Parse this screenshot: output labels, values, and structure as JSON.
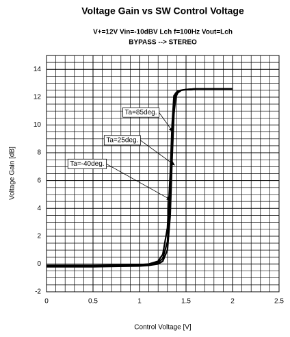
{
  "chart_data": {
    "type": "line",
    "title": "Voltage Gain vs SW Control Voltage",
    "subtitle": [
      "V+=12V  Vin=-10dBV Lch f=100Hz   Vout=Lch",
      "BYPASS --> STEREO"
    ],
    "x_label": "Control Voltage  [V]",
    "y_label": "Voltage Gain  [dB]",
    "x": [
      0,
      0.5,
      1.0,
      1.1,
      1.2,
      1.25,
      1.3,
      1.33,
      1.35,
      1.37,
      1.39,
      1.41,
      1.45,
      1.5,
      1.6,
      2.0
    ],
    "series": [
      {
        "name": "Ta=-40deg.",
        "color": "#000000",
        "values": [
          -0.2,
          -0.2,
          -0.15,
          -0.1,
          0,
          0.2,
          1.0,
          3.5,
          7.5,
          10.8,
          12.0,
          12.3,
          12.5,
          12.55,
          12.6,
          12.6
        ]
      },
      {
        "name": "Ta=25deg.",
        "color": "#000000",
        "values": [
          -0.15,
          -0.15,
          -0.1,
          -0.05,
          0.1,
          0.4,
          1.6,
          4.8,
          8.8,
          11.6,
          12.2,
          12.4,
          12.5,
          12.55,
          12.6,
          12.6
        ]
      },
      {
        "name": "Ta=85deg.",
        "color": "#000000",
        "values": [
          -0.1,
          -0.1,
          -0.05,
          0,
          0.2,
          0.7,
          2.6,
          6.5,
          10.0,
          12.1,
          12.3,
          12.45,
          12.5,
          12.55,
          12.6,
          12.6
        ]
      }
    ],
    "annotations": [
      {
        "text": "Ta=85deg.",
        "xy": [
          1.36,
          9.5
        ],
        "xytext": [
          0.82,
          10.9
        ]
      },
      {
        "text": "Ta=25deg.",
        "xy": [
          1.38,
          7.1
        ],
        "xytext": [
          0.62,
          8.9
        ]
      },
      {
        "text": "Ta=-40deg.",
        "xy": [
          1.34,
          4.6
        ],
        "xytext": [
          0.23,
          7.2
        ]
      }
    ],
    "xlim": [
      0,
      2.5
    ],
    "ylim": [
      -2,
      15
    ],
    "xticks": [
      0,
      0.5,
      1,
      1.5,
      2,
      2.5
    ],
    "yticks": [
      -2,
      0,
      2,
      4,
      6,
      8,
      10,
      12,
      14
    ],
    "grid": true
  }
}
